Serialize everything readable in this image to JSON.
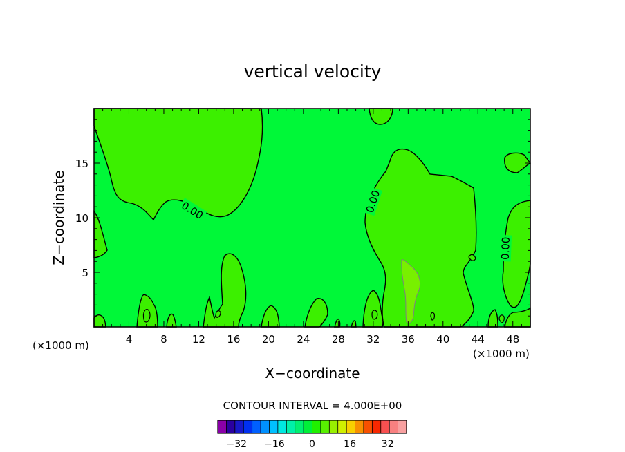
{
  "chart_data": {
    "type": "heatmap",
    "title": "vertical velocity",
    "xlabel": "X−coordinate",
    "ylabel": "Z−coordinate",
    "x_unit_left": "(×1000 m)",
    "x_unit_right": "(×1000 m)",
    "xlim": [
      0,
      50
    ],
    "ylim": [
      0,
      20
    ],
    "x_ticks": [
      4,
      8,
      12,
      16,
      20,
      24,
      28,
      32,
      36,
      40,
      44,
      48
    ],
    "y_ticks": [
      5,
      10,
      15
    ],
    "grid": false,
    "contour_interval_text": "CONTOUR INTERVAL = 4.000E+00",
    "contour_labels": [
      {
        "text": "0.00",
        "x": 11.3,
        "y": 10.7,
        "angle": 32
      },
      {
        "text": "0.00",
        "x": 31.9,
        "y": 11.5,
        "angle": -72
      },
      {
        "text": "0.00",
        "x": 47.1,
        "y": 7.2,
        "angle": -88
      }
    ],
    "colorbar": {
      "levels": [
        -36,
        -32,
        -28,
        -24,
        -20,
        -16,
        -12,
        -8,
        -4,
        0,
        4,
        8,
        12,
        16,
        20,
        24,
        28,
        32,
        36
      ],
      "colors": [
        "#8a00a8",
        "#2a00a0",
        "#1818c8",
        "#0030f0",
        "#0060ff",
        "#0090ff",
        "#00c0ff",
        "#00e8e0",
        "#00f0a8",
        "#00f070",
        "#00f038",
        "#20f000",
        "#58f000",
        "#98f000",
        "#d0f000",
        "#f8d000",
        "#f89000",
        "#f85000",
        "#f82800",
        "#f85050",
        "#f88080",
        "#f8a0a0"
      ],
      "tick_labels": [
        "-32",
        "-16",
        "0",
        "16",
        "32"
      ],
      "tick_values": [
        -32,
        -16,
        0,
        16,
        32
      ]
    },
    "fill_colors": {
      "background": "#00f838",
      "positive": "#3cf000",
      "strong_positive": "#78f000"
    }
  }
}
